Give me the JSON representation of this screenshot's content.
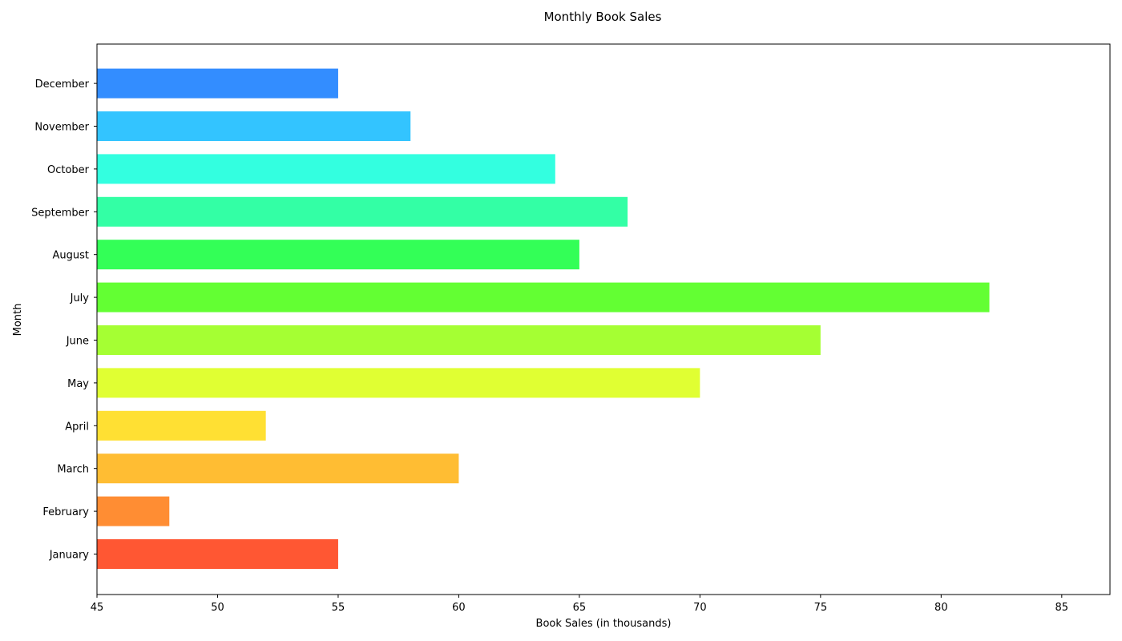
{
  "chart_data": {
    "type": "bar",
    "orientation": "horizontal",
    "title": "Monthly Book Sales",
    "xlabel": "Book Sales (in thousands)",
    "ylabel": "Month",
    "xlim": [
      45,
      87
    ],
    "xticks": [
      "45",
      "50",
      "55",
      "60",
      "65",
      "70",
      "75",
      "80",
      "85"
    ],
    "grid": false,
    "categories": [
      "January",
      "February",
      "March",
      "April",
      "May",
      "June",
      "July",
      "August",
      "September",
      "October",
      "November",
      "December"
    ],
    "values": [
      55,
      48,
      60,
      52,
      70,
      75,
      82,
      65,
      67,
      64,
      58,
      55
    ],
    "colors": [
      "#ff5733",
      "#ff8d33",
      "#ffbd33",
      "#ffe033",
      "#e0ff33",
      "#a5ff33",
      "#63ff33",
      "#33ff57",
      "#33ffa5",
      "#33ffe0",
      "#33c4ff",
      "#338dff"
    ]
  }
}
